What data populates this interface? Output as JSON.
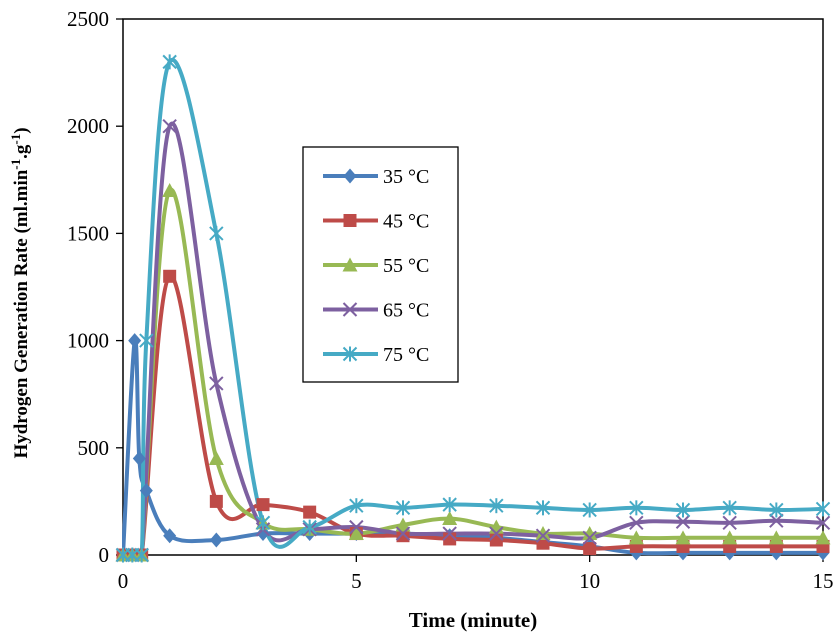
{
  "chart_data": {
    "type": "line",
    "title": "",
    "xlabel": "Time (minute)",
    "ylabel": {
      "prefix": "Hydrogen Generation Rate  (ml.min",
      "sup1": "-1",
      "mid": ".g",
      "sup2": "-1",
      "suffix": ")"
    },
    "xlim": [
      0,
      15
    ],
    "ylim": [
      0,
      2500
    ],
    "xticks": [
      0,
      5,
      10,
      15
    ],
    "yticks": [
      0,
      500,
      1000,
      1500,
      2000,
      2500
    ],
    "grid": false,
    "smooth": true,
    "legend_position": "center-left",
    "series": [
      {
        "name": "35 °C",
        "color": "#4a7ebb",
        "marker": "diamond",
        "x": [
          0,
          0.25,
          0.35,
          0.5,
          1,
          2,
          3,
          4,
          5,
          6,
          7,
          8,
          9,
          10,
          11,
          12,
          13,
          14,
          15
        ],
        "y": [
          0,
          1000,
          450,
          300,
          90,
          70,
          100,
          100,
          100,
          100,
          90,
          80,
          60,
          40,
          10,
          10,
          10,
          10,
          10
        ]
      },
      {
        "name": "45 °C",
        "color": "#be4b48",
        "marker": "square",
        "x": [
          0,
          0.2,
          0.4,
          1,
          2,
          3,
          4,
          5,
          6,
          7,
          8,
          9,
          10,
          11,
          12,
          13,
          14,
          15
        ],
        "y": [
          0,
          0,
          0,
          1300,
          250,
          235,
          200,
          100,
          90,
          75,
          70,
          55,
          30,
          40,
          40,
          40,
          40,
          40
        ]
      },
      {
        "name": "55 °C",
        "color": "#98b954",
        "marker": "triangle",
        "x": [
          0,
          0.2,
          0.4,
          1,
          2,
          3,
          4,
          5,
          6,
          7,
          8,
          9,
          10,
          11,
          12,
          13,
          14,
          15
        ],
        "y": [
          0,
          0,
          0,
          1700,
          450,
          150,
          120,
          100,
          140,
          170,
          130,
          100,
          100,
          80,
          80,
          80,
          80,
          80
        ]
      },
      {
        "name": "65 °C",
        "color": "#7d60a0",
        "marker": "x",
        "x": [
          0,
          0.2,
          0.4,
          1,
          2,
          3,
          4,
          5,
          6,
          7,
          8,
          9,
          10,
          11,
          12,
          13,
          14,
          15
        ],
        "y": [
          0,
          0,
          0,
          2000,
          800,
          120,
          120,
          130,
          100,
          100,
          100,
          90,
          80,
          150,
          155,
          150,
          160,
          150
        ]
      },
      {
        "name": "75 °C",
        "color": "#46aac5",
        "marker": "star",
        "x": [
          0,
          0.2,
          0.4,
          0.5,
          1,
          2,
          3,
          4,
          5,
          6,
          7,
          8,
          9,
          10,
          11,
          12,
          13,
          14,
          15
        ],
        "y": [
          0,
          0,
          0,
          1000,
          2300,
          1500,
          150,
          130,
          230,
          220,
          235,
          230,
          220,
          210,
          220,
          210,
          220,
          210,
          215
        ]
      }
    ]
  }
}
